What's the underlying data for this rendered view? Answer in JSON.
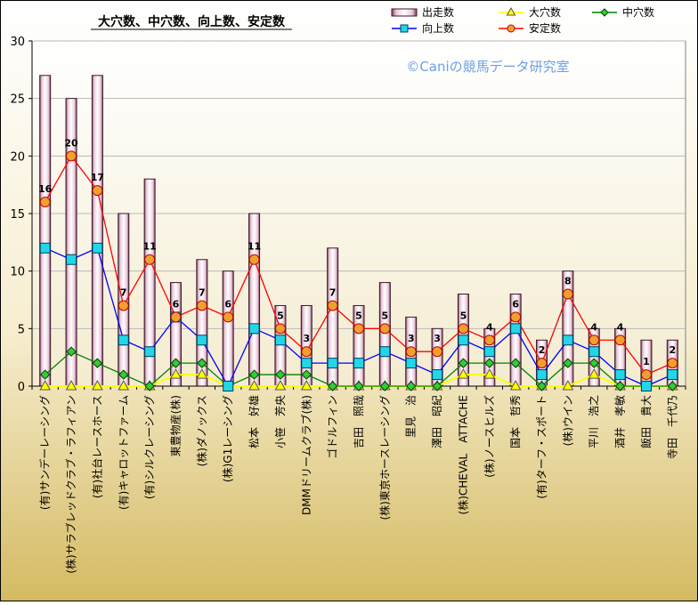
{
  "chart_data": {
    "type": "bar",
    "title": "大穴数、中穴数、向上数、安定数",
    "watermark": "©Caniの競馬データ研究室",
    "ylim": [
      0,
      30
    ],
    "yticks": [
      0,
      5,
      10,
      15,
      20,
      25,
      30
    ],
    "legend_position": "top-right",
    "categories": [
      "(有)サンデーレーシング",
      "(株)サラブレッドクラブ・ラフィアン",
      "(有)社台レースホース",
      "(有)キャロットファーム",
      "(有)シルクレーシング",
      "東豊物産(株)",
      "(株)ダノックス",
      "(株)G1レーシング",
      "松本　好雄",
      "小笹　芳央",
      "DMMドリームクラブ(株)",
      "ゴドルフィン",
      "吉田　照哉",
      "(株)東京ホースレーシング",
      "里見　治",
      "澤田　昭紀",
      "(株)CHEVAL　ATTACHE",
      "(株)ノースヒルズ",
      "国本　哲秀",
      "(有)ターフ・スポート",
      "(株)ウイン",
      "平川　浩之",
      "酒井　孝敏",
      "飯田　貴大",
      "寺田　千代乃"
    ],
    "series": [
      {
        "name": "出走数",
        "kind": "bar",
        "color": "#e8c8d8",
        "values": [
          27,
          25,
          27,
          15,
          18,
          9,
          11,
          10,
          15,
          7,
          7,
          12,
          7,
          9,
          6,
          5,
          8,
          5,
          8,
          4,
          10,
          5,
          5,
          4,
          4
        ]
      },
      {
        "name": "大穴数",
        "kind": "line",
        "color": "#ffff00",
        "values": [
          0,
          0,
          0,
          0,
          0,
          1,
          1,
          0,
          0,
          0,
          0,
          0,
          0,
          0,
          0,
          0,
          1,
          1,
          0,
          0,
          0,
          1,
          0,
          0,
          0
        ]
      },
      {
        "name": "中穴数",
        "kind": "line",
        "color": "#008000",
        "values": [
          1,
          3,
          2,
          1,
          0,
          2,
          2,
          0,
          1,
          1,
          1,
          0,
          0,
          0,
          0,
          0,
          2,
          2,
          2,
          0,
          2,
          2,
          0,
          0,
          0
        ]
      },
      {
        "name": "向上数",
        "kind": "line",
        "color": "#0000ff",
        "values": [
          12,
          11,
          12,
          4,
          3,
          6,
          4,
          0,
          5,
          4,
          2,
          2,
          2,
          3,
          2,
          1,
          4,
          3,
          5,
          1,
          4,
          3,
          1,
          0,
          1
        ]
      },
      {
        "name": "安定数",
        "kind": "line",
        "color": "#ff0000",
        "values": [
          16,
          20,
          17,
          7,
          11,
          6,
          7,
          6,
          11,
          5,
          3,
          7,
          5,
          5,
          3,
          3,
          5,
          4,
          6,
          2,
          8,
          4,
          4,
          1,
          2
        ]
      }
    ],
    "data_labels_series": "安定数"
  }
}
